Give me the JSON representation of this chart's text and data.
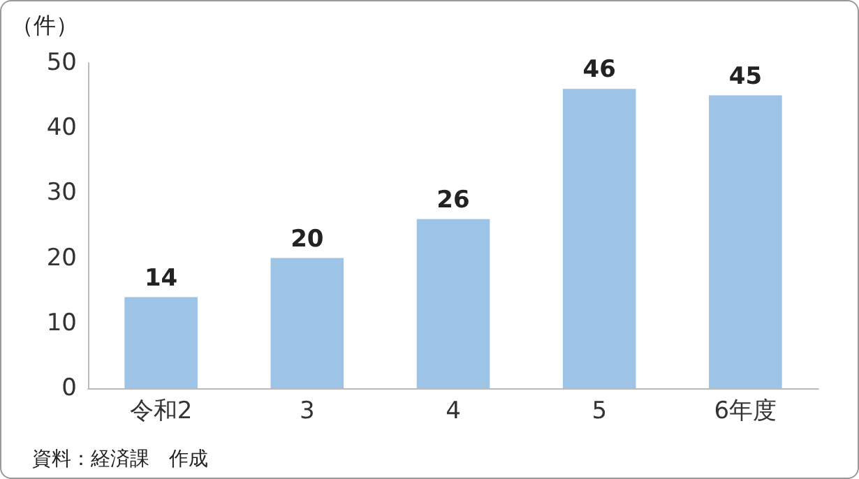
{
  "chart_data": {
    "type": "bar",
    "ylabel": "（件）",
    "categories": [
      "令和2",
      "3",
      "4",
      "5",
      "6年度"
    ],
    "values": [
      14,
      20,
      26,
      46,
      45
    ],
    "color": "#9dc3e6",
    "ylim": [
      0,
      50
    ],
    "yticks": [
      0,
      10,
      20,
      30,
      40,
      50
    ],
    "grid": false,
    "data_labels": true,
    "annotations": [
      "資料：経済課　作成"
    ]
  }
}
